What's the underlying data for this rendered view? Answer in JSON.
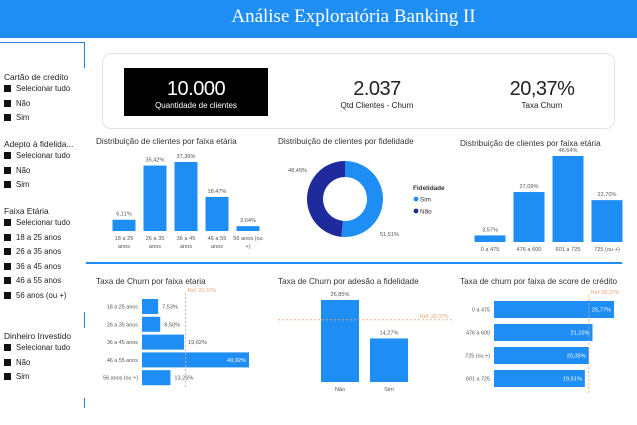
{
  "header": {
    "title": "Análise Exploratória Banking II"
  },
  "filters": [
    {
      "title": "Cartão de credito",
      "options": [
        "Selecionar tudo",
        "Não",
        "Sim"
      ]
    },
    {
      "title": "Adepto à fidelida...",
      "options": [
        "Selecionar tudo",
        "Não",
        "Sim"
      ]
    },
    {
      "title": "Faixa Etária",
      "options": [
        "Selecionar tudo",
        "18 a 25 anos",
        "26 a 35 anos",
        "36 a 45 anos",
        "46 a 55 anos",
        "56 anos (ou +)"
      ]
    },
    {
      "title": "Dinheiro Investido",
      "options": [
        "Selecionar tudo",
        "Não",
        "Sim"
      ]
    }
  ],
  "kpis": [
    {
      "value": "10.000",
      "label": "Quantidade de clientes"
    },
    {
      "value": "2.037",
      "label": "Qtd Clientes - Churn"
    },
    {
      "value": "20,37%",
      "label": "Taxa Churn"
    }
  ],
  "colors": {
    "bar": "#1e8ef5",
    "dark_blue": "#1f2a9c",
    "ref_line": "#f0a070",
    "header": "#1e8ef5"
  },
  "chart_data": [
    {
      "type": "bar",
      "title": "Distribuição de clientes por faixa etária",
      "categories": [
        "18 a 25 anos",
        "26 a 35 anos",
        "36 a 45 anos",
        "46 a 55 anos",
        "56 anos (ou +)"
      ],
      "values": [
        6.11,
        35.42,
        37.36,
        18.47,
        2.64
      ],
      "labels": [
        "6,11%",
        "35,42%",
        "37,36%",
        "18,47%",
        "2,64%"
      ]
    },
    {
      "type": "pie",
      "title": "Distribuição de clientes por fidelidade",
      "legend_title": "Fidelidade",
      "legend_placement": "right",
      "categories": [
        "Sim",
        "Não"
      ],
      "values": [
        51.51,
        48.49
      ],
      "labels": [
        "51,51%",
        "48,49%"
      ]
    },
    {
      "type": "bar",
      "title": "Distribuição de clientes por faixa etária",
      "categories": [
        "0 a 475",
        "476 a 600",
        "601 a 725",
        "725 (ou +)"
      ],
      "values": [
        3.57,
        27.09,
        46.64,
        22.7
      ],
      "labels": [
        "3,57%",
        "27,09%",
        "46,64%",
        "22,70%"
      ]
    },
    {
      "type": "bar",
      "orientation": "horizontal",
      "title": "Taxa de Churn por faixa etaria",
      "categories": [
        "18 a 25 anos",
        "26 a 35 anos",
        "36 a 45 anos",
        "46 a 55 anos",
        "56 anos (ou +)"
      ],
      "values": [
        7.53,
        8.5,
        19.62,
        49.92,
        13.26
      ],
      "labels": [
        "7,53%",
        "8,50%",
        "19,62%",
        "49,92%",
        "13,26%"
      ],
      "reference": {
        "value": 20.37,
        "label": "Ref: 20,37%"
      }
    },
    {
      "type": "bar",
      "title": "Taxa de Churn por adesão a fidelidade",
      "categories": [
        "Não",
        "Sim"
      ],
      "values": [
        26.85,
        14.27
      ],
      "labels": [
        "26,85%",
        "14,27%"
      ],
      "reference": {
        "value": 20.37,
        "label": "Ref: 20,37%"
      }
    },
    {
      "type": "bar",
      "orientation": "horizontal",
      "title": "Taxa de churn por faixa de score de crédito",
      "categories": [
        "0 a 475",
        "476 a 600",
        "725 (ou +)",
        "601 a 725"
      ],
      "values": [
        25.77,
        21.15,
        20.35,
        19.51
      ],
      "labels": [
        "25,77%",
        "21,15%",
        "20,35%",
        "19,51%"
      ],
      "reference": {
        "value": 20.37,
        "label": "Ref: 20,37%"
      }
    }
  ]
}
